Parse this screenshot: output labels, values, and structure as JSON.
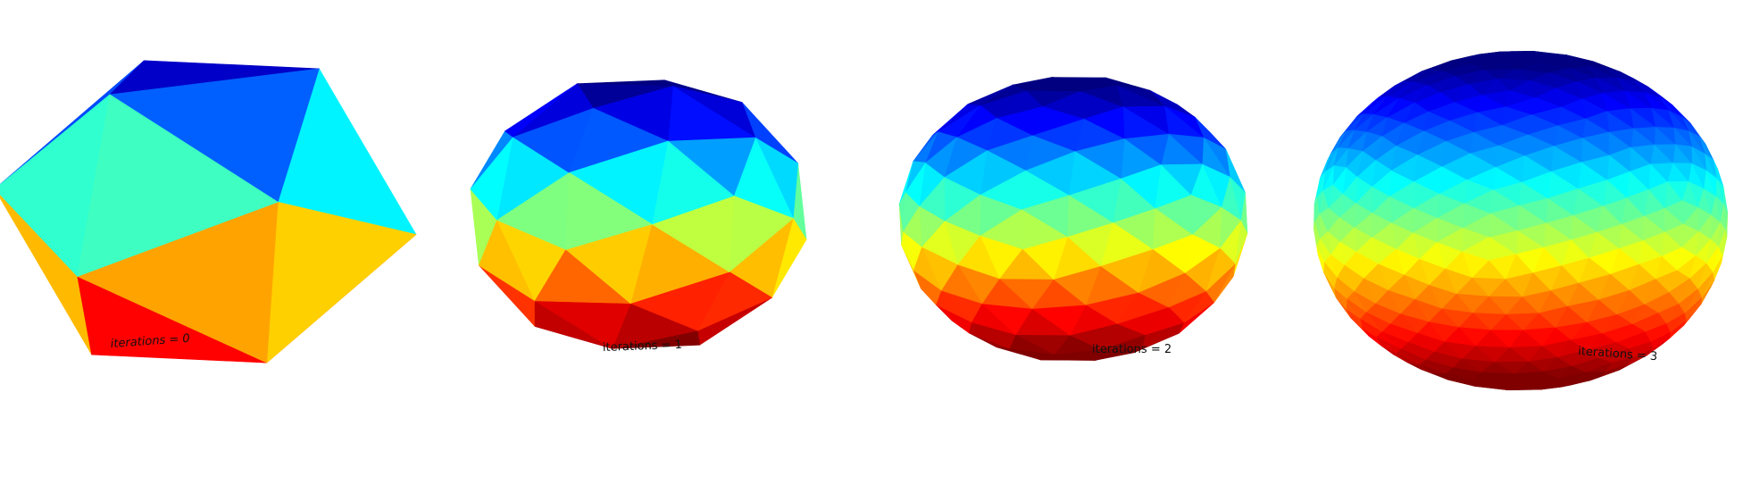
{
  "figure": {
    "panels": [
      {
        "label": "iterations = 0",
        "iterations": 0
      },
      {
        "label": "iterations = 1",
        "iterations": 1
      },
      {
        "label": "iterations = 2",
        "iterations": 2
      },
      {
        "label": "iterations = 3",
        "iterations": 3
      }
    ],
    "colormap": "jet",
    "background": "#ffffff"
  }
}
